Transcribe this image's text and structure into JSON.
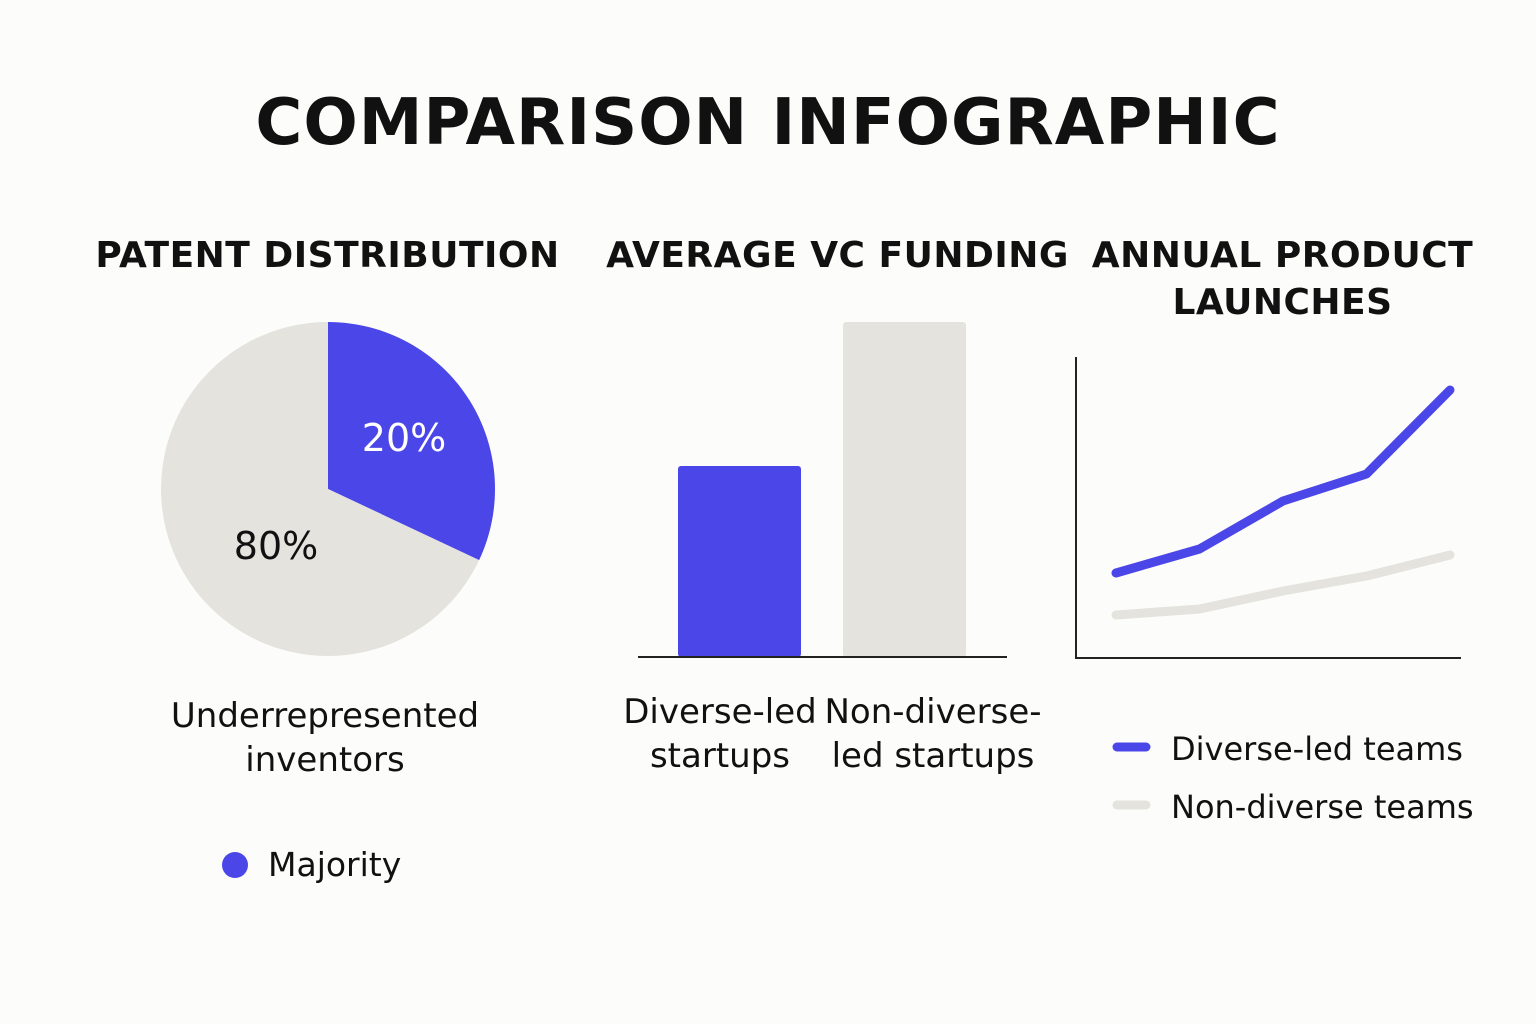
{
  "title": "COMPARISON INFOGRAPHIC",
  "colors": {
    "accent": "#4b46e8",
    "neutral": "#e4e3de",
    "background": "#fcfcfa",
    "text": "#111111"
  },
  "chart_data": [
    {
      "type": "pie",
      "title": "PATENT DISTRIBUTION",
      "slices": [
        {
          "label": "20%",
          "value": 20,
          "color": "#4b46e8"
        },
        {
          "label": "80%",
          "value": 80,
          "color": "#e4e3de"
        }
      ],
      "caption_lines": [
        "Underrepresented",
        "inventors"
      ],
      "legend": [
        {
          "label": "Majority",
          "color": "#4b46e8"
        }
      ]
    },
    {
      "type": "bar",
      "title": "AVERAGE VC FUNDING",
      "categories": [
        {
          "lines": [
            "Diverse-led",
            "startups"
          ]
        },
        {
          "lines": [
            "Non-diverse-",
            "led startups"
          ]
        }
      ],
      "values": [
        57,
        100
      ],
      "colors": [
        "#4b46e8",
        "#e4e3de"
      ],
      "ylim": [
        0,
        100
      ]
    },
    {
      "type": "line",
      "title_lines": [
        "ANNUAL PRODUCT",
        "LAUNCHES"
      ],
      "x": [
        1,
        2,
        3,
        4,
        5
      ],
      "series": [
        {
          "name": "Diverse-led teams",
          "values": [
            28,
            36,
            52,
            61,
            89
          ],
          "color": "#4b46e8"
        },
        {
          "name": "Non-diverse teams",
          "values": [
            14,
            16,
            22,
            27,
            34
          ],
          "color": "#e4e3de"
        }
      ],
      "ylim": [
        0,
        100
      ]
    }
  ]
}
